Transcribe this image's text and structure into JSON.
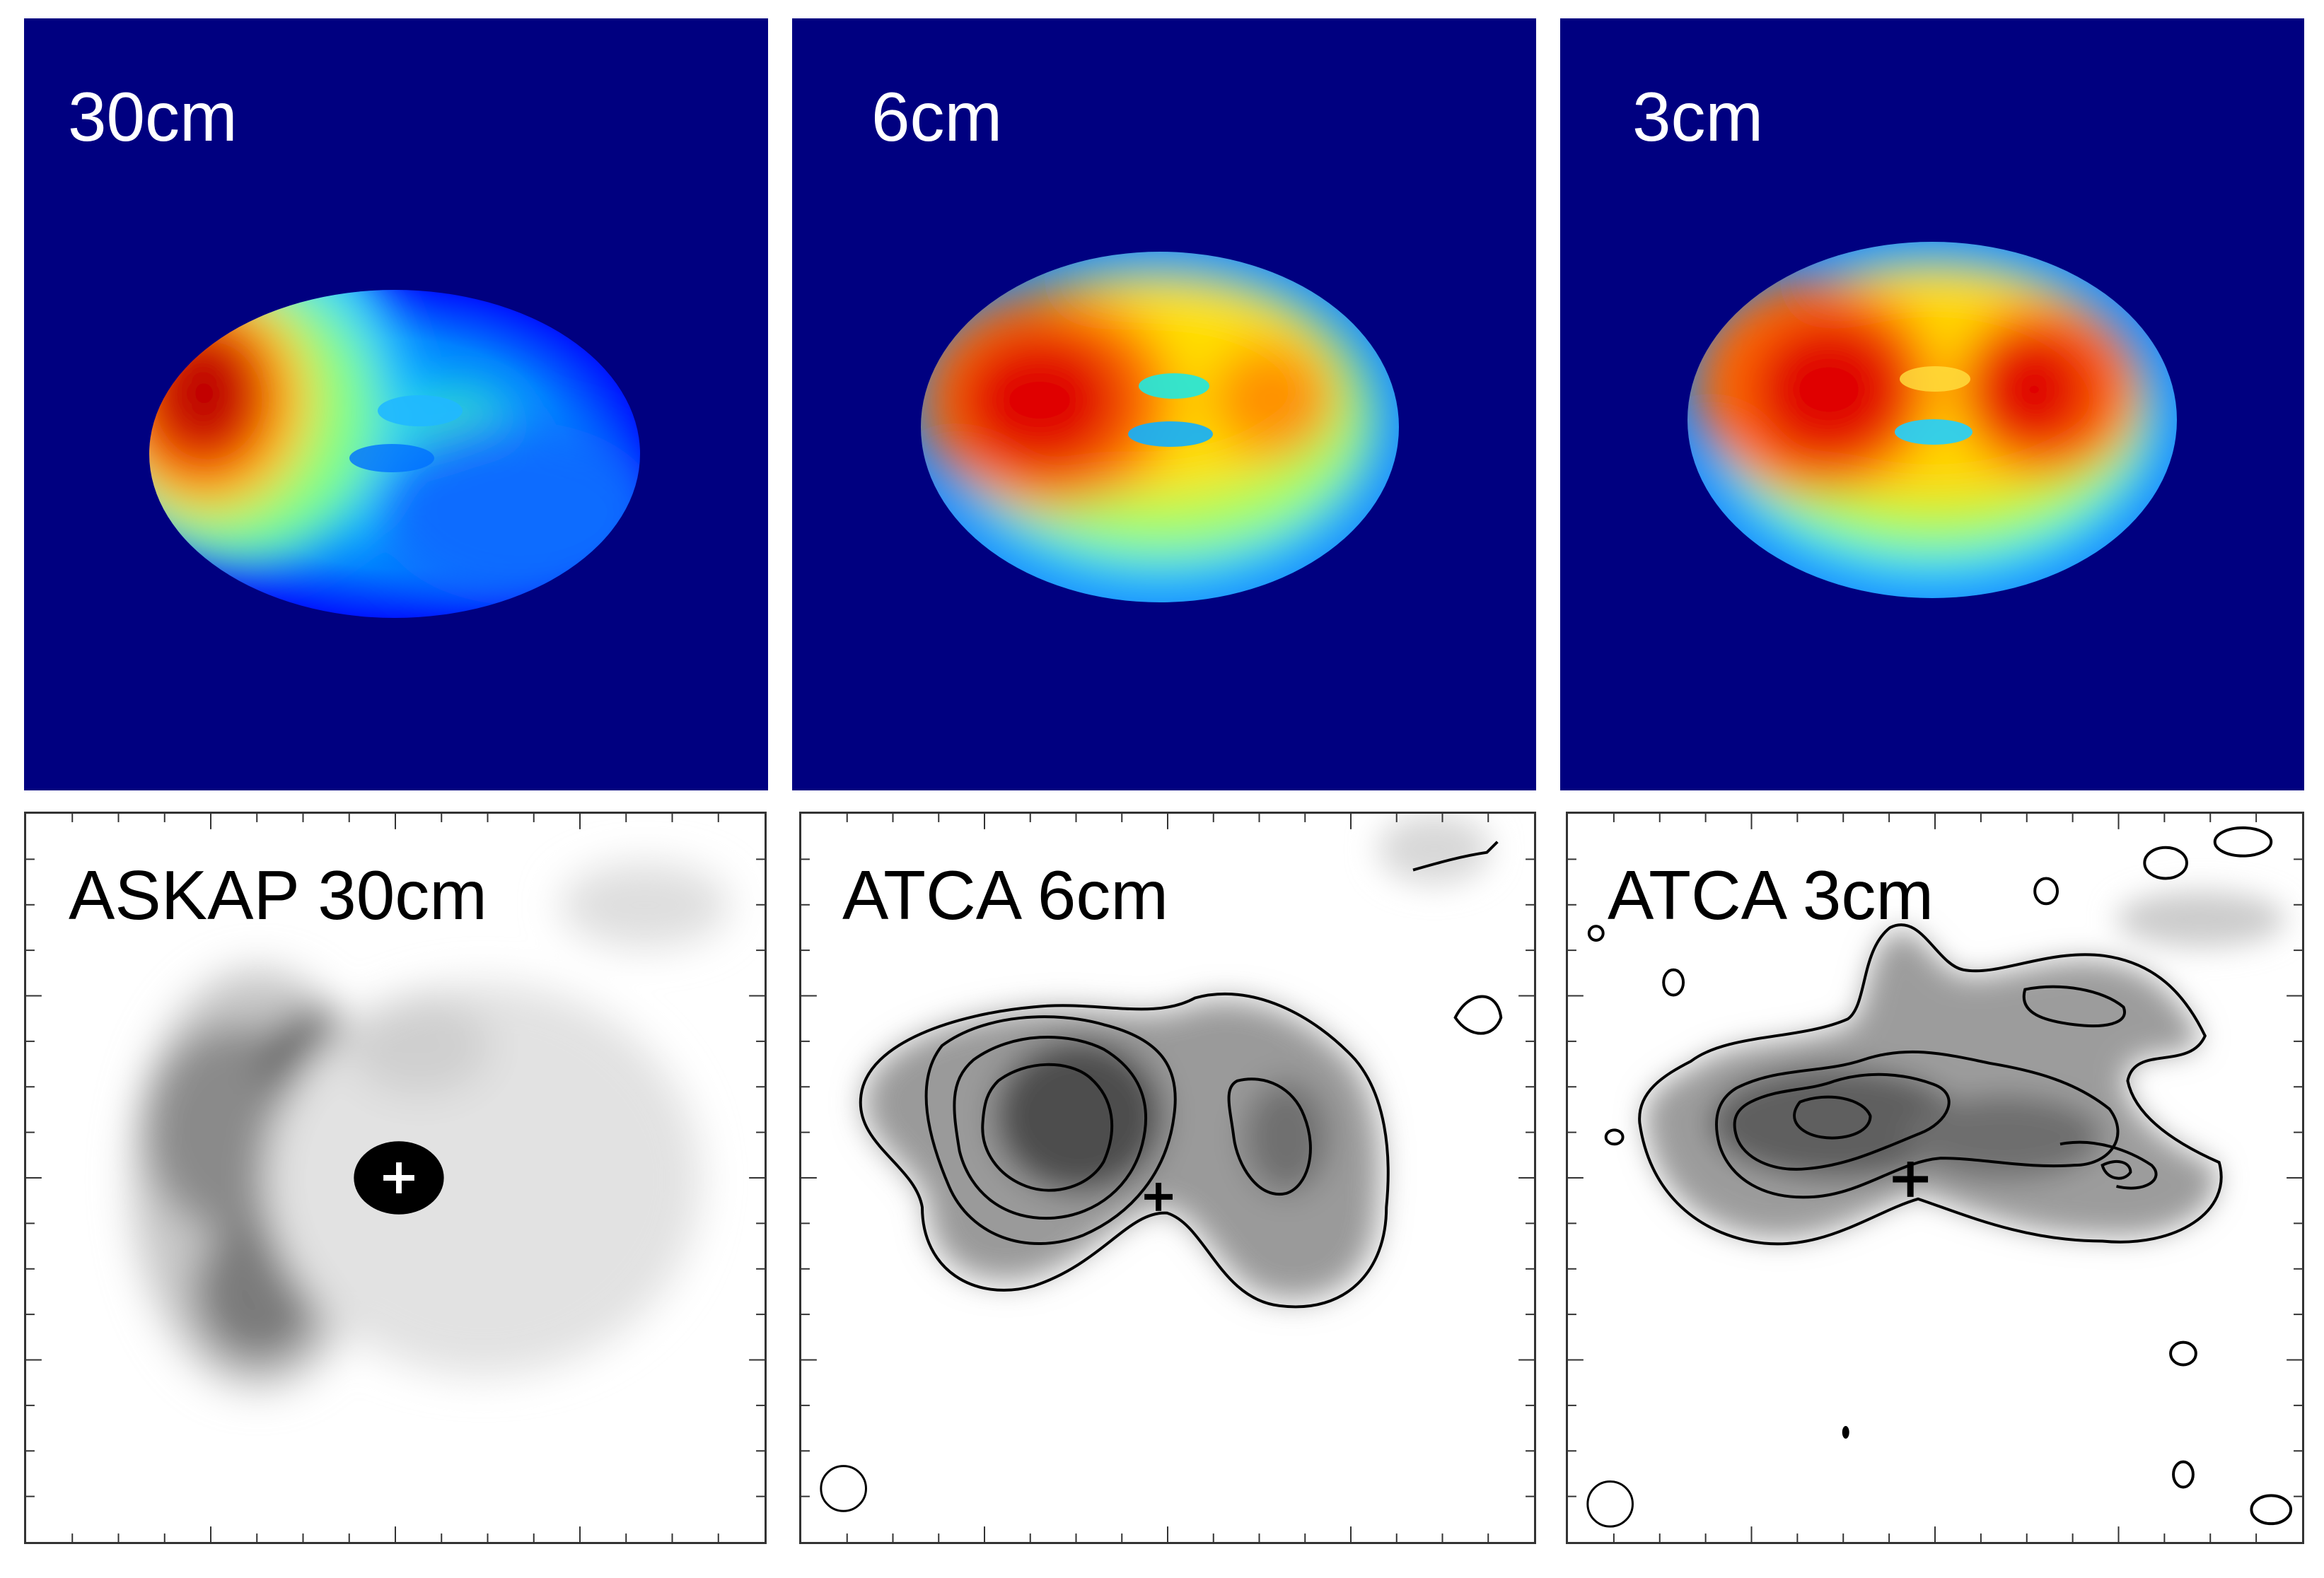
{
  "figure": {
    "background": "#ffffff",
    "simulation_row": {
      "colormap": "jet",
      "background_color": "#000080",
      "panels": [
        {
          "label": "30cm"
        },
        {
          "label": "6cm"
        },
        {
          "label": "3cm"
        }
      ]
    },
    "observation_row": {
      "colormap": "grayscale",
      "contour_color": "#000000",
      "panels": [
        {
          "label": "ASKAP 30cm",
          "marker": "plus",
          "contours": false,
          "beam_shown": false
        },
        {
          "label": "ATCA 6cm",
          "marker": "plus",
          "contours": true,
          "beam_shown": true
        },
        {
          "label": "ATCA 3cm",
          "marker": "plus",
          "contours": true,
          "beam_shown": true
        }
      ]
    }
  }
}
